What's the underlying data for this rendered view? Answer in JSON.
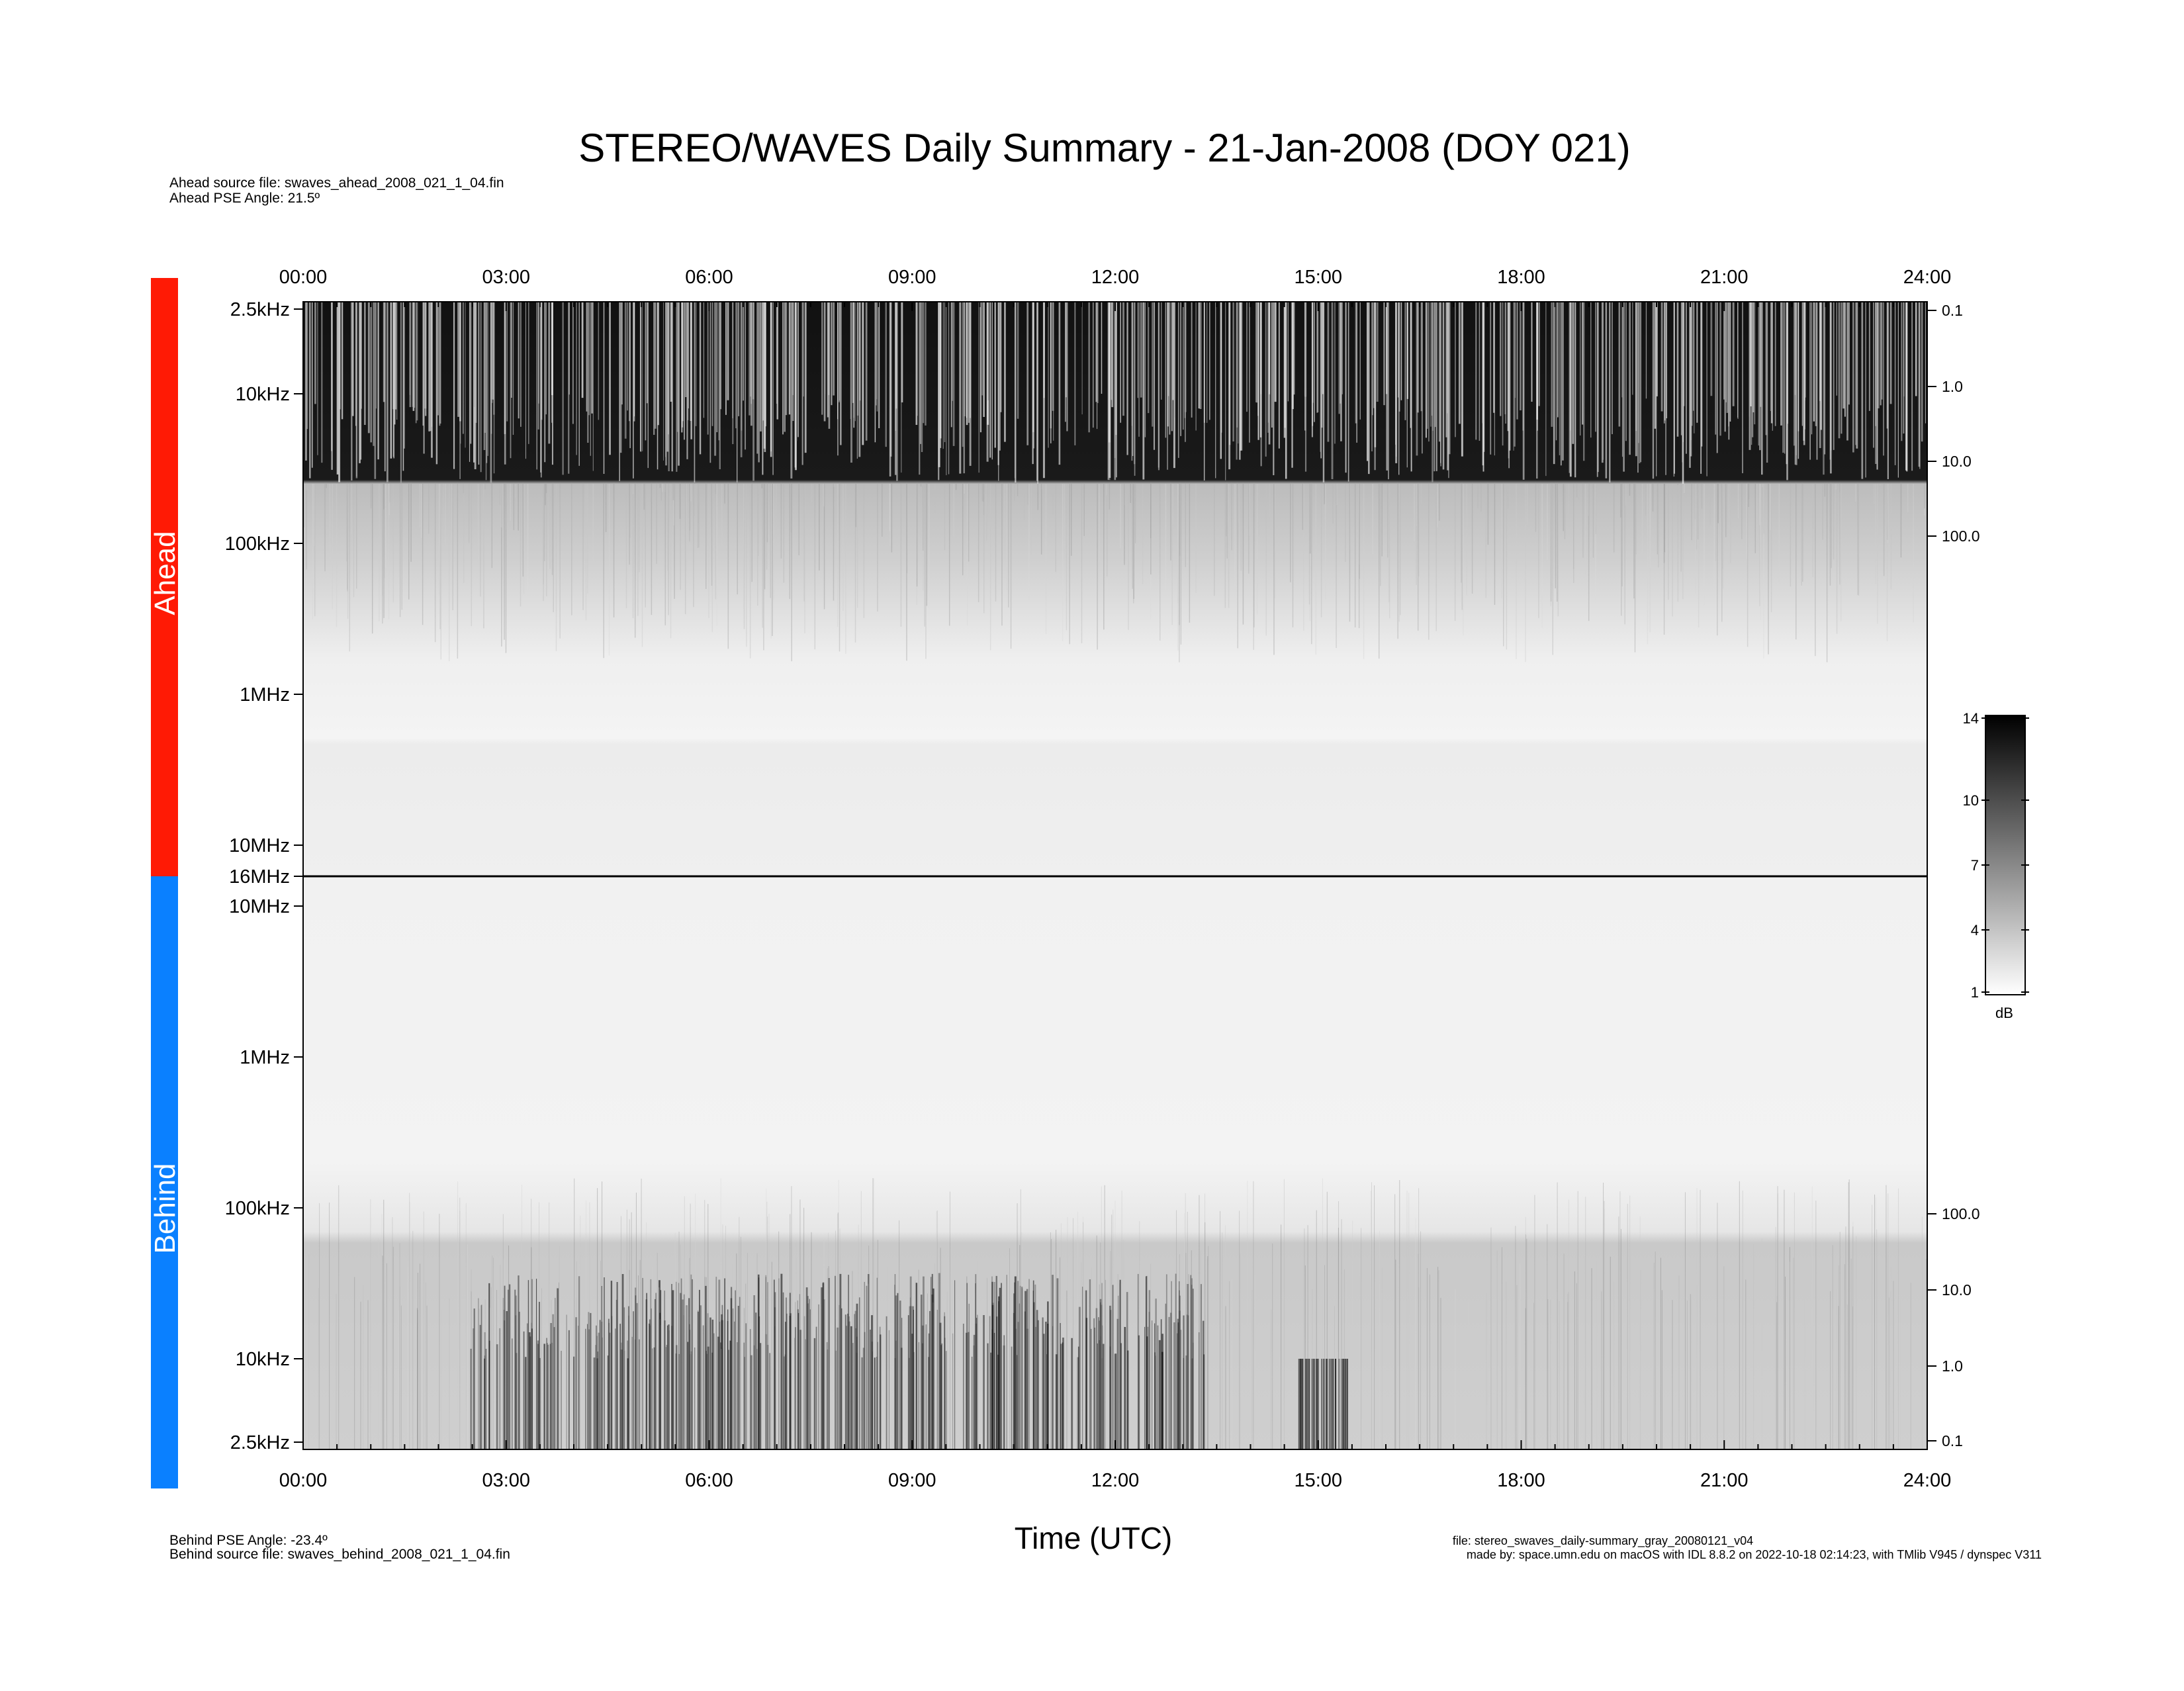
{
  "title": "STEREO/WAVES Daily Summary - 21-Jan-2008 (DOY 021)",
  "ahead_info": [
    "Ahead source file: swaves_ahead_2008_021_1_04.fin",
    "Ahead PSE Angle:   21.5º"
  ],
  "behind_info": [
    "Behind PSE Angle:  -23.4º",
    "Behind source file: swaves_behind_2008_021_1_04.fin"
  ],
  "footer": [
    "file: stereo_swaves_daily-summary_gray_20080121_v04",
    "made by: space.umn.edu on macOS with IDL 8.8.2 on 2022-10-18 02:14:23, with TMlib V945 / dynspec V311"
  ],
  "x_axis_title": "Time (UTC)",
  "time_labels": [
    "00:00",
    "03:00",
    "06:00",
    "09:00",
    "12:00",
    "15:00",
    "18:00",
    "21:00",
    "24:00"
  ],
  "ahead": {
    "label": "Ahead",
    "freq_labels": [
      "2.5kHz",
      "10kHz",
      "100kHz",
      "1MHz",
      "10MHz",
      "16MHz"
    ],
    "right_labels": [
      "0.1",
      "1.0",
      "10.0",
      "100.0"
    ]
  },
  "behind": {
    "label": "Behind",
    "freq_labels": [
      "10MHz",
      "1MHz",
      "100kHz",
      "10kHz",
      "2.5kHz"
    ],
    "right_labels": [
      "100.0",
      "10.0",
      "1.0",
      "0.1"
    ]
  },
  "colorbar": {
    "ticks": [
      "14",
      "10",
      "7",
      "4",
      "1"
    ],
    "unit": "dB"
  }
}
